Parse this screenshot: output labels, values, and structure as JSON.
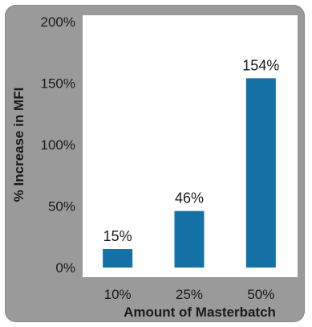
{
  "chart_data": {
    "type": "bar",
    "title": "",
    "xlabel": "Amount of Masterbatch",
    "ylabel": "% Increase in MFI",
    "categories": [
      "10%",
      "25%",
      "50%"
    ],
    "values": [
      15,
      46,
      154
    ],
    "data_labels": [
      "15%",
      "46%",
      "154%"
    ],
    "y_ticks": [
      0,
      50,
      100,
      150,
      200
    ],
    "y_tick_labels": [
      "0%",
      "50%",
      "100%",
      "150%",
      "200%"
    ],
    "ylim": [
      0,
      200
    ],
    "grid": false,
    "legend": "none",
    "bar_color": "#1471a6",
    "frame_color": "#9a9a9a"
  }
}
